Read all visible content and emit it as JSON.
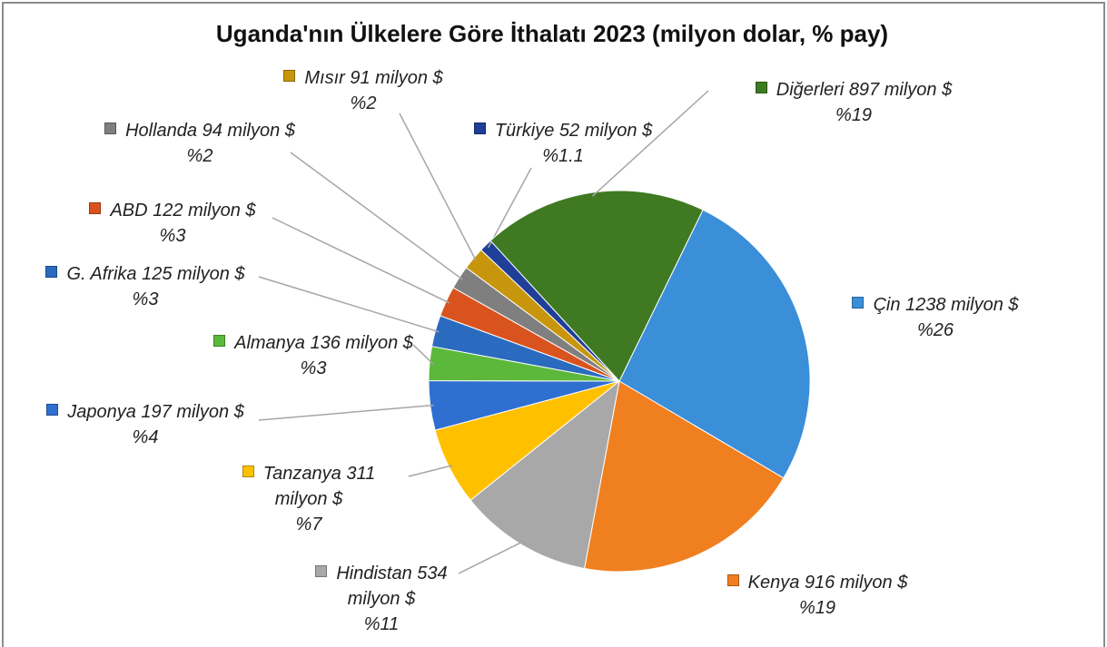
{
  "chart_data": {
    "type": "pie",
    "title": "Uganda'nın Ülkelere Göre İthalatı 2023 (milyon dolar, % pay)",
    "categories": [
      "Çin",
      "Kenya",
      "Hindistan",
      "Tanzanya",
      "Japonya",
      "Almanya",
      "G. Afrika",
      "ABD",
      "Hollanda",
      "Mısır",
      "Türkiye",
      "Diğerleri"
    ],
    "values": [
      1238,
      916,
      534,
      311,
      197,
      136,
      125,
      122,
      94,
      91,
      52,
      897
    ],
    "value_labels": [
      "1238 milyon $",
      "916 milyon $",
      "534 milyon $",
      "311 milyon $",
      "197 milyon $",
      "136 milyon $",
      "125 milyon $",
      "122 milyon $",
      "94 milyon $",
      "91 milyon $",
      "52 milyon $",
      "897 milyon $"
    ],
    "percent_labels": [
      "%26",
      "%19",
      "%11",
      "%7",
      "%4",
      "%3",
      "%3",
      "%3",
      "%2",
      "%2",
      "%1.1",
      "%19"
    ],
    "colors": [
      "#3b8ed8",
      "#f07f1f",
      "#a8a8a8",
      "#ffc000",
      "#2f6fd0",
      "#5cb83a",
      "#2a6bbf",
      "#d9531e",
      "#7f7f7f",
      "#c8960c",
      "#1f3f99",
      "#3f7a22"
    ]
  }
}
